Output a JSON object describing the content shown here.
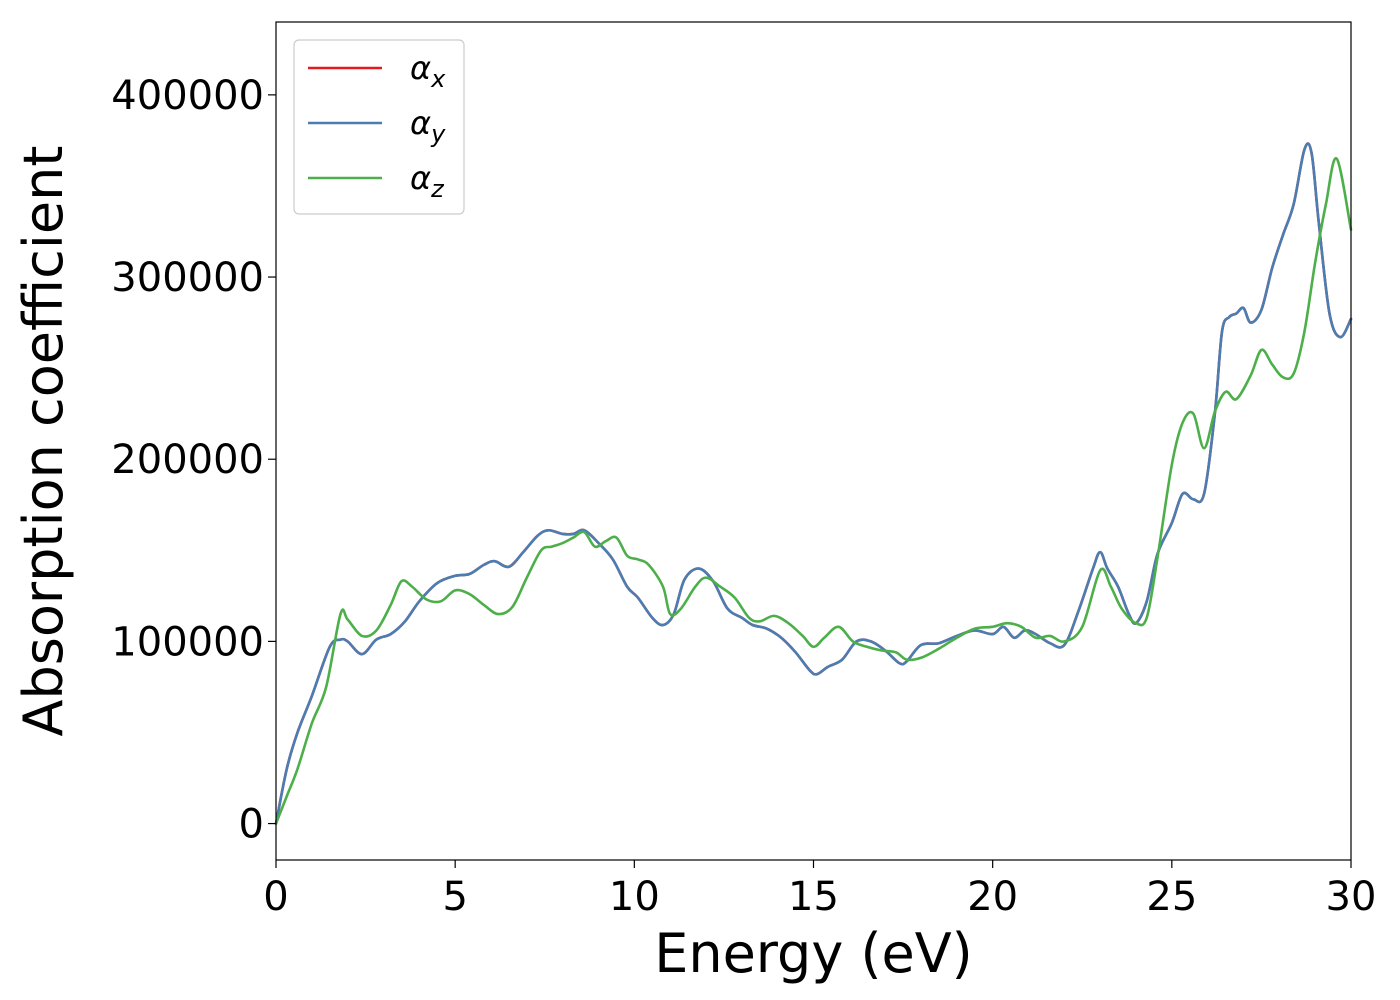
{
  "chart_data": {
    "type": "line",
    "xlabel": "Energy (eV)",
    "ylabel": "Absorption coefficient",
    "xlim": [
      0,
      30
    ],
    "ylim": [
      -20000,
      440000
    ],
    "xticks": [
      0,
      5,
      10,
      15,
      20,
      25,
      30
    ],
    "xtick_labels": [
      "0",
      "5",
      "10",
      "15",
      "20",
      "25",
      "30"
    ],
    "yticks": [
      0,
      100000,
      200000,
      300000,
      400000
    ],
    "ytick_labels": [
      "0",
      "100000",
      "200000",
      "300000",
      "400000"
    ],
    "grid": false,
    "legend_position": "top-left",
    "series": [
      {
        "name": "αx",
        "base": "α",
        "sub": "x",
        "color": "#e41a1c",
        "x": [
          0,
          0.3,
          0.6,
          1.0,
          1.5,
          1.8,
          2.0,
          2.4,
          2.8,
          3.2,
          3.6,
          4.0,
          4.5,
          5.0,
          5.4,
          5.8,
          6.1,
          6.5,
          6.9,
          7.3,
          7.6,
          8.0,
          8.3,
          8.6,
          9.0,
          9.4,
          9.8,
          10.1,
          10.5,
          10.8,
          11.1,
          11.4,
          11.8,
          12.2,
          12.6,
          13.0,
          13.3,
          13.7,
          14.1,
          14.5,
          14.9,
          15.1,
          15.4,
          15.8,
          16.2,
          16.6,
          17.0,
          17.4,
          17.6,
          18.0,
          18.5,
          19.0,
          19.5,
          20.0,
          20.3,
          20.6,
          20.9,
          21.2,
          21.6,
          22.0,
          22.4,
          22.8,
          23.0,
          23.2,
          23.5,
          23.8,
          24.0,
          24.3,
          24.6,
          25.0,
          25.3,
          25.6,
          25.9,
          26.2,
          26.4,
          26.6,
          26.8,
          27.0,
          27.2,
          27.5,
          27.8,
          28.1,
          28.4,
          28.7,
          28.9,
          29.1,
          29.4,
          29.7,
          30.0
        ],
        "values": [
          0,
          30000,
          50000,
          70000,
          97000,
          101000,
          100000,
          93000,
          101000,
          104000,
          111000,
          122000,
          132000,
          136000,
          137000,
          142000,
          144000,
          141000,
          149000,
          158000,
          161000,
          159000,
          159000,
          161000,
          154000,
          145000,
          130000,
          124000,
          113000,
          109000,
          115000,
          134000,
          140000,
          133000,
          118000,
          113000,
          109000,
          107000,
          102000,
          94000,
          84000,
          82000,
          86000,
          90000,
          100000,
          100000,
          95000,
          88000,
          89000,
          98000,
          99000,
          103000,
          106000,
          104000,
          108000,
          102000,
          106000,
          104000,
          99000,
          98000,
          117000,
          140000,
          149000,
          140000,
          130000,
          115000,
          110000,
          122000,
          148000,
          165000,
          181000,
          178000,
          181000,
          225000,
          270000,
          278000,
          280000,
          283000,
          275000,
          282000,
          305000,
          323000,
          340000,
          370000,
          368000,
          330000,
          280000,
          267000,
          277000
        ]
      },
      {
        "name": "αy",
        "base": "α",
        "sub": "y",
        "color": "#4a7eb3",
        "x": [
          0,
          0.3,
          0.6,
          1.0,
          1.5,
          1.8,
          2.0,
          2.4,
          2.8,
          3.2,
          3.6,
          4.0,
          4.5,
          5.0,
          5.4,
          5.8,
          6.1,
          6.5,
          6.9,
          7.3,
          7.6,
          8.0,
          8.3,
          8.6,
          9.0,
          9.4,
          9.8,
          10.1,
          10.5,
          10.8,
          11.1,
          11.4,
          11.8,
          12.2,
          12.6,
          13.0,
          13.3,
          13.7,
          14.1,
          14.5,
          14.9,
          15.1,
          15.4,
          15.8,
          16.2,
          16.6,
          17.0,
          17.4,
          17.6,
          18.0,
          18.5,
          19.0,
          19.5,
          20.0,
          20.3,
          20.6,
          20.9,
          21.2,
          21.6,
          22.0,
          22.4,
          22.8,
          23.0,
          23.2,
          23.5,
          23.8,
          24.0,
          24.3,
          24.6,
          25.0,
          25.3,
          25.6,
          25.9,
          26.2,
          26.4,
          26.6,
          26.8,
          27.0,
          27.2,
          27.5,
          27.8,
          28.1,
          28.4,
          28.7,
          28.9,
          29.1,
          29.4,
          29.7,
          30.0
        ],
        "values": [
          0,
          30000,
          50000,
          70000,
          97000,
          101000,
          100000,
          93000,
          101000,
          104000,
          111000,
          122000,
          132000,
          136000,
          137000,
          142000,
          144000,
          141000,
          149000,
          158000,
          161000,
          159000,
          159000,
          161000,
          154000,
          145000,
          130000,
          124000,
          113000,
          109000,
          115000,
          134000,
          140000,
          133000,
          118000,
          113000,
          109000,
          107000,
          102000,
          94000,
          84000,
          82000,
          86000,
          90000,
          100000,
          100000,
          95000,
          88000,
          89000,
          98000,
          99000,
          103000,
          106000,
          104000,
          108000,
          102000,
          106000,
          104000,
          99000,
          98000,
          117000,
          140000,
          149000,
          140000,
          130000,
          115000,
          110000,
          122000,
          148000,
          165000,
          181000,
          178000,
          181000,
          225000,
          270000,
          278000,
          280000,
          283000,
          275000,
          282000,
          305000,
          323000,
          340000,
          370000,
          368000,
          330000,
          280000,
          267000,
          277000
        ]
      },
      {
        "name": "αz",
        "base": "α",
        "sub": "z",
        "color": "#4daf4a",
        "x": [
          0,
          0.3,
          0.6,
          1.0,
          1.4,
          1.8,
          2.0,
          2.4,
          2.8,
          3.2,
          3.5,
          3.8,
          4.2,
          4.6,
          5.0,
          5.4,
          5.8,
          6.2,
          6.6,
          7.0,
          7.4,
          7.7,
          8.0,
          8.3,
          8.6,
          8.9,
          9.2,
          9.5,
          9.8,
          10.1,
          10.4,
          10.8,
          11.0,
          11.3,
          11.7,
          12.0,
          12.4,
          12.8,
          13.2,
          13.5,
          13.9,
          14.3,
          14.7,
          15.0,
          15.3,
          15.7,
          16.1,
          16.5,
          16.9,
          17.3,
          17.6,
          18.0,
          18.5,
          19.0,
          19.5,
          20.0,
          20.4,
          20.8,
          21.2,
          21.6,
          22.0,
          22.5,
          23.0,
          23.3,
          23.6,
          24.0,
          24.3,
          24.6,
          25.0,
          25.3,
          25.6,
          25.9,
          26.2,
          26.5,
          26.8,
          27.2,
          27.5,
          27.8,
          28.1,
          28.4,
          28.7,
          29.0,
          29.3,
          29.6,
          30.0
        ],
        "values": [
          0,
          15000,
          30000,
          55000,
          75000,
          115000,
          112000,
          103000,
          106000,
          120000,
          133000,
          130000,
          123000,
          122000,
          128000,
          126000,
          120000,
          115000,
          119000,
          135000,
          150000,
          152000,
          154000,
          157000,
          160000,
          152000,
          155000,
          157000,
          147000,
          145000,
          142000,
          130000,
          115000,
          118000,
          130000,
          135000,
          130000,
          124000,
          113000,
          111000,
          114000,
          110000,
          103000,
          97000,
          102000,
          108000,
          100000,
          97000,
          95000,
          94000,
          90000,
          91000,
          96000,
          102000,
          107000,
          108000,
          110000,
          108000,
          102000,
          103000,
          100000,
          108000,
          139000,
          130000,
          118000,
          110000,
          113000,
          146000,
          197000,
          220000,
          225000,
          206000,
          226000,
          237000,
          233000,
          246000,
          260000,
          252000,
          245000,
          247000,
          270000,
          308000,
          340000,
          365000,
          326000
        ]
      }
    ]
  }
}
